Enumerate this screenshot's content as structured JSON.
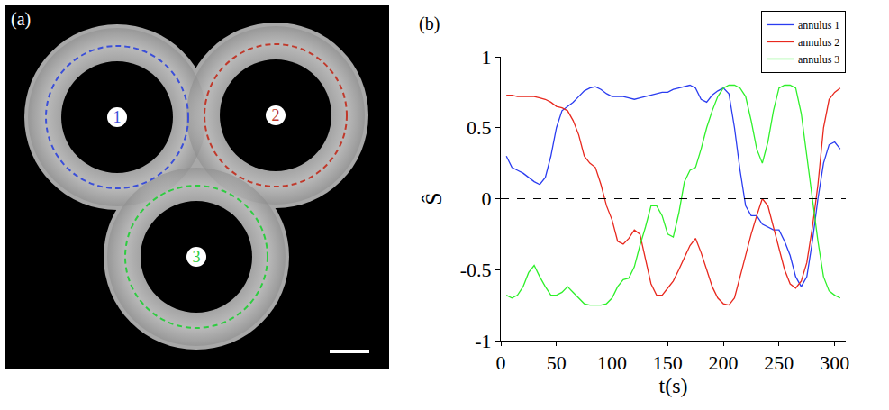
{
  "image": {
    "label": "(a)",
    "annuli": [
      {
        "label": "1",
        "color": "#3b4fd8"
      },
      {
        "label": "2",
        "color": "#c0392b"
      },
      {
        "label": "3",
        "color": "#2ecc40"
      }
    ]
  },
  "chart_data": {
    "type": "line",
    "label": "(b)",
    "x_label": "t(s)",
    "y_label": "Ŝ",
    "x": [
      5,
      10,
      15,
      20,
      25,
      30,
      35,
      40,
      45,
      50,
      55,
      60,
      65,
      70,
      75,
      80,
      85,
      90,
      95,
      100,
      105,
      110,
      115,
      120,
      125,
      130,
      135,
      140,
      145,
      150,
      155,
      160,
      165,
      170,
      175,
      180,
      185,
      190,
      195,
      200,
      205,
      210,
      215,
      220,
      225,
      230,
      235,
      240,
      245,
      250,
      255,
      260,
      265,
      270,
      275,
      280,
      285,
      290,
      295,
      300,
      305
    ],
    "series": [
      {
        "name": "annulus 1",
        "color": "#2a3cf0",
        "values": [
          0.3,
          0.22,
          0.2,
          0.18,
          0.15,
          0.12,
          0.1,
          0.15,
          0.3,
          0.5,
          0.62,
          0.65,
          0.68,
          0.72,
          0.76,
          0.78,
          0.79,
          0.77,
          0.74,
          0.72,
          0.72,
          0.72,
          0.71,
          0.7,
          0.71,
          0.72,
          0.73,
          0.74,
          0.75,
          0.75,
          0.77,
          0.78,
          0.79,
          0.8,
          0.78,
          0.7,
          0.68,
          0.73,
          0.76,
          0.78,
          0.74,
          0.5,
          0.2,
          -0.05,
          -0.12,
          -0.12,
          -0.18,
          -0.2,
          -0.22,
          -0.22,
          -0.3,
          -0.4,
          -0.55,
          -0.62,
          -0.55,
          -0.3,
          0.0,
          0.25,
          0.38,
          0.4,
          0.35
        ]
      },
      {
        "name": "annulus 2",
        "color": "#e8281e",
        "values": [
          0.73,
          0.73,
          0.72,
          0.72,
          0.72,
          0.72,
          0.71,
          0.7,
          0.68,
          0.65,
          0.64,
          0.62,
          0.55,
          0.45,
          0.3,
          0.25,
          0.22,
          0.1,
          -0.05,
          -0.15,
          -0.3,
          -0.32,
          -0.28,
          -0.22,
          -0.25,
          -0.42,
          -0.6,
          -0.68,
          -0.68,
          -0.63,
          -0.58,
          -0.5,
          -0.42,
          -0.33,
          -0.28,
          -0.38,
          -0.5,
          -0.62,
          -0.7,
          -0.74,
          -0.75,
          -0.7,
          -0.55,
          -0.4,
          -0.25,
          -0.12,
          0.0,
          -0.05,
          -0.2,
          -0.35,
          -0.5,
          -0.6,
          -0.63,
          -0.58,
          -0.45,
          -0.2,
          0.1,
          0.5,
          0.7,
          0.75,
          0.78
        ]
      },
      {
        "name": "annulus 3",
        "color": "#2ef02a",
        "values": [
          -0.68,
          -0.7,
          -0.68,
          -0.62,
          -0.52,
          -0.47,
          -0.55,
          -0.62,
          -0.68,
          -0.68,
          -0.66,
          -0.62,
          -0.66,
          -0.7,
          -0.74,
          -0.75,
          -0.75,
          -0.75,
          -0.74,
          -0.7,
          -0.62,
          -0.57,
          -0.56,
          -0.48,
          -0.33,
          -0.2,
          -0.05,
          -0.05,
          -0.12,
          -0.25,
          -0.27,
          -0.1,
          0.12,
          0.2,
          0.22,
          0.35,
          0.5,
          0.62,
          0.72,
          0.78,
          0.8,
          0.8,
          0.78,
          0.72,
          0.55,
          0.35,
          0.25,
          0.4,
          0.62,
          0.78,
          0.8,
          0.8,
          0.78,
          0.6,
          0.3,
          0.0,
          -0.3,
          -0.55,
          -0.65,
          -0.68,
          -0.7
        ]
      }
    ],
    "reference_line": {
      "y": 0,
      "line_style": "dashed"
    },
    "xlim": [
      0,
      310
    ],
    "xticks": [
      0,
      50,
      100,
      150,
      200,
      250,
      300
    ],
    "ylim": [
      -1,
      1
    ],
    "yticks": [
      -1,
      -0.5,
      0,
      0.5,
      1
    ],
    "grid": false,
    "legend": "top right"
  }
}
